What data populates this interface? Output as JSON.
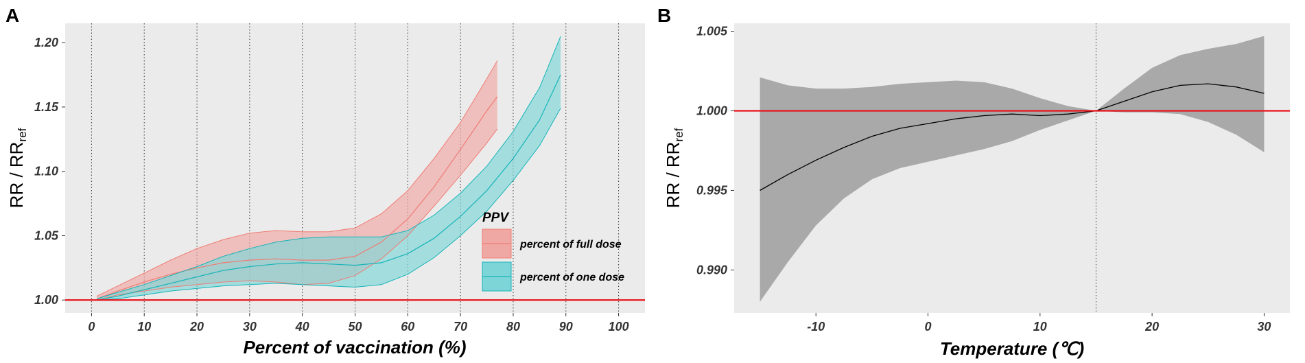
{
  "chart_data": [
    {
      "type": "line",
      "panel": "A",
      "xlabel": "Percent of vaccination (%)",
      "ylabel_main": "RR / RR",
      "ylabel_sub": "ref",
      "xlim": [
        -5,
        105
      ],
      "ylim": [
        0.99,
        1.215
      ],
      "x_ticks": [
        0,
        10,
        20,
        30,
        40,
        50,
        60,
        70,
        80,
        90,
        100
      ],
      "x_tick_labels": [
        "0",
        "10",
        "20",
        "30",
        "40",
        "50",
        "60",
        "70",
        "80",
        "90",
        "100"
      ],
      "y_ticks": [
        1.0,
        1.05,
        1.1,
        1.15,
        1.2
      ],
      "y_tick_labels": [
        "1.00",
        "1.05",
        "1.10",
        "1.15",
        "1.20"
      ],
      "reference_line": 1.0,
      "vertical_gridlines": [
        0,
        10,
        20,
        30,
        40,
        50,
        60,
        70,
        80,
        90,
        100
      ],
      "legend": {
        "title": "PPV",
        "position": "right",
        "entries": [
          "percent of full dose",
          "percent of one dose"
        ]
      },
      "series": [
        {
          "name": "percent of full dose",
          "color": "#f07c73",
          "fill": "#f0a8a4",
          "x": [
            1,
            5,
            10,
            15,
            20,
            25,
            30,
            35,
            40,
            45,
            50,
            55,
            60,
            65,
            70,
            75,
            77
          ],
          "values": [
            1.001,
            1.007,
            1.014,
            1.02,
            1.025,
            1.029,
            1.031,
            1.032,
            1.031,
            1.031,
            1.034,
            1.045,
            1.063,
            1.088,
            1.117,
            1.147,
            1.158
          ],
          "lower": [
            1.0,
            1.004,
            1.007,
            1.01,
            1.012,
            1.014,
            1.015,
            1.014,
            1.012,
            1.013,
            1.019,
            1.032,
            1.05,
            1.073,
            1.097,
            1.122,
            1.133
          ],
          "upper": [
            1.003,
            1.011,
            1.021,
            1.031,
            1.04,
            1.047,
            1.052,
            1.054,
            1.053,
            1.053,
            1.056,
            1.067,
            1.085,
            1.11,
            1.138,
            1.172,
            1.186
          ]
        },
        {
          "name": "percent of one dose",
          "color": "#14b4b8",
          "fill": "#7ed5d7",
          "x": [
            1,
            5,
            10,
            15,
            20,
            25,
            30,
            35,
            40,
            45,
            50,
            55,
            60,
            65,
            70,
            75,
            80,
            85,
            89
          ],
          "values": [
            1.0,
            1.003,
            1.008,
            1.013,
            1.018,
            1.023,
            1.026,
            1.028,
            1.029,
            1.028,
            1.027,
            1.029,
            1.036,
            1.048,
            1.065,
            1.085,
            1.11,
            1.14,
            1.175
          ],
          "lower": [
            1.0,
            1.001,
            1.004,
            1.007,
            1.009,
            1.011,
            1.012,
            1.013,
            1.012,
            1.011,
            1.01,
            1.012,
            1.02,
            1.033,
            1.05,
            1.069,
            1.093,
            1.12,
            1.149
          ],
          "upper": [
            1.001,
            1.006,
            1.012,
            1.019,
            1.026,
            1.034,
            1.04,
            1.045,
            1.048,
            1.049,
            1.049,
            1.049,
            1.054,
            1.066,
            1.083,
            1.104,
            1.131,
            1.165,
            1.205
          ]
        }
      ]
    },
    {
      "type": "line",
      "panel": "B",
      "xlabel": "Temperature (℃)",
      "ylabel_main": "RR / RR",
      "ylabel_sub": "ref",
      "xlim": [
        -17.3,
        32.3
      ],
      "ylim": [
        0.9873,
        1.0055
      ],
      "x_ticks": [
        -10,
        0,
        10,
        20,
        30
      ],
      "x_tick_labels": [
        "-10",
        "0",
        "10",
        "20",
        "30"
      ],
      "y_ticks": [
        0.99,
        0.995,
        1.0,
        1.005
      ],
      "y_tick_labels": [
        "0.990",
        "0.995",
        "1.000",
        "1.005"
      ],
      "reference_line": 1.0,
      "vertical_reference": 15,
      "series": [
        {
          "name": "RR",
          "color": "#000000",
          "fill": "#a9a9a9",
          "x": [
            -15,
            -12.5,
            -10,
            -7.5,
            -5,
            -2.5,
            0,
            2.5,
            5,
            7.5,
            10,
            12.5,
            15,
            17.5,
            20,
            22.5,
            25,
            27.5,
            30
          ],
          "values": [
            0.995,
            0.996,
            0.9969,
            0.9977,
            0.9984,
            0.9989,
            0.9992,
            0.9995,
            0.9997,
            0.9998,
            0.9997,
            0.9998,
            1.0,
            1.0006,
            1.0012,
            1.0016,
            1.0017,
            1.0015,
            1.0011
          ],
          "lower": [
            0.988,
            0.9905,
            0.9928,
            0.9945,
            0.9957,
            0.9964,
            0.9968,
            0.9972,
            0.9976,
            0.9981,
            0.9988,
            0.9994,
            1.0,
            0.9999,
            0.9999,
            0.9998,
            0.9993,
            0.9985,
            0.9974
          ],
          "upper": [
            1.0021,
            1.0016,
            1.0014,
            1.0014,
            1.0015,
            1.0017,
            1.0018,
            1.0019,
            1.0018,
            1.0014,
            1.0008,
            1.0003,
            1.0,
            1.0014,
            1.0027,
            1.0035,
            1.0039,
            1.0042,
            1.0047
          ]
        }
      ]
    }
  ]
}
